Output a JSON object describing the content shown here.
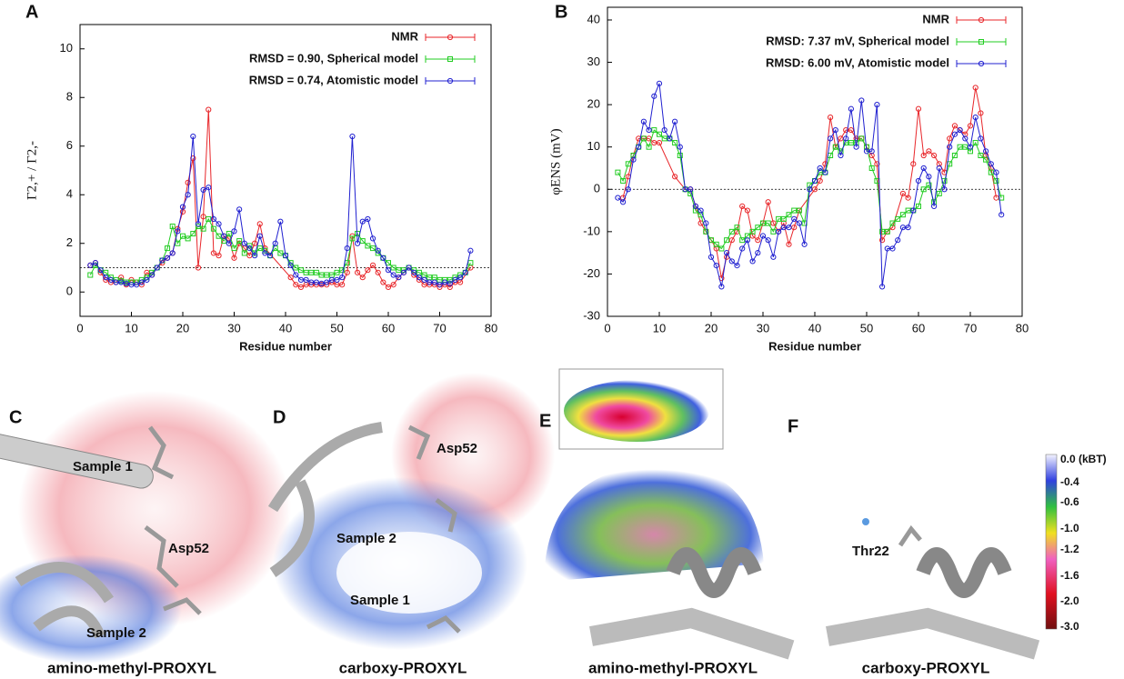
{
  "chart_data": [
    {
      "type": "line",
      "panel_label": "A",
      "xlabel": "Residue number",
      "ylabel": "Γ2,+ / Γ2,-",
      "x": [
        2,
        3,
        4,
        5,
        6,
        7,
        8,
        9,
        10,
        11,
        12,
        13,
        14,
        15,
        16,
        17,
        18,
        19,
        20,
        21,
        22,
        23,
        24,
        25,
        26,
        27,
        28,
        29,
        30,
        31,
        32,
        33,
        34,
        35,
        36,
        37,
        38,
        39,
        40,
        41,
        42,
        43,
        44,
        45,
        46,
        47,
        48,
        49,
        50,
        51,
        52,
        53,
        54,
        55,
        56,
        57,
        58,
        59,
        60,
        61,
        62,
        63,
        64,
        65,
        66,
        67,
        68,
        69,
        70,
        71,
        72,
        73,
        74,
        75,
        76
      ],
      "xlim": [
        0,
        80
      ],
      "xticks": [
        0,
        10,
        20,
        30,
        40,
        50,
        60,
        70,
        80
      ],
      "ylim": [
        -1,
        11
      ],
      "yticks": [
        0,
        2,
        4,
        6,
        8,
        10
      ],
      "reference_line": 1,
      "legend": "upper right",
      "series": [
        {
          "name": "NMR",
          "color": "#e8262a",
          "marker": "circle",
          "x": [
            2,
            3,
            4,
            5,
            6,
            7,
            8,
            9,
            10,
            11,
            12,
            13,
            14,
            15,
            16,
            17,
            18,
            19,
            20,
            21,
            22,
            23,
            24,
            25,
            26,
            27,
            28,
            29,
            30,
            31,
            32,
            33,
            34,
            35,
            36,
            41,
            42,
            43,
            44,
            45,
            46,
            47,
            48,
            49,
            50,
            51,
            52,
            53,
            54,
            55,
            56,
            57,
            58,
            59,
            60,
            61,
            62,
            63,
            64,
            65,
            66,
            67,
            68,
            69,
            70,
            71,
            72,
            73,
            74,
            76
          ],
          "values": [
            1.1,
            1.2,
            0.8,
            0.5,
            0.4,
            0.4,
            0.6,
            0.3,
            0.5,
            0.4,
            0.3,
            0.8,
            0.7,
            1.0,
            1.2,
            1.4,
            1.6,
            2.6,
            3.3,
            4.5,
            5.5,
            1.0,
            3.1,
            7.5,
            1.6,
            1.5,
            2.3,
            2.2,
            1.4,
            2.0,
            1.8,
            1.5,
            2.0,
            2.8,
            1.8,
            0.6,
            0.3,
            0.2,
            0.3,
            0.3,
            0.3,
            0.3,
            0.3,
            0.4,
            0.3,
            0.3,
            0.8,
            2.3,
            0.8,
            0.6,
            0.9,
            1.1,
            0.8,
            0.4,
            0.2,
            0.3,
            0.6,
            0.8,
            1.0,
            0.7,
            0.5,
            0.3,
            0.3,
            0.3,
            0.2,
            0.3,
            0.2,
            0.4,
            0.4,
            1.0
          ]
        },
        {
          "name": "RMSD = 0.90, Spherical model",
          "color": "#22cc22",
          "marker": "square",
          "values": [
            0.7,
            1.1,
            0.9,
            0.8,
            0.6,
            0.5,
            0.45,
            0.4,
            0.4,
            0.4,
            0.5,
            0.6,
            0.8,
            1.0,
            1.3,
            1.8,
            2.7,
            2.0,
            2.3,
            2.2,
            2.4,
            2.7,
            2.6,
            3.0,
            2.6,
            2.3,
            2.1,
            2.4,
            1.8,
            2.1,
            1.6,
            1.9,
            1.6,
            1.8,
            1.7,
            1.5,
            1.8,
            1.6,
            1.5,
            1.2,
            1.0,
            0.9,
            0.8,
            0.8,
            0.8,
            0.7,
            0.7,
            0.7,
            0.8,
            0.9,
            1.2,
            2.2,
            2.4,
            2.1,
            1.9,
            1.8,
            1.6,
            1.4,
            1.2,
            1.0,
            0.9,
            0.9,
            1.0,
            0.9,
            0.8,
            0.7,
            0.6,
            0.6,
            0.5,
            0.5,
            0.5,
            0.6,
            0.7,
            0.8,
            1.2
          ]
        },
        {
          "name": "RMSD = 0.74, Atomistic model",
          "color": "#2020d0",
          "marker": "circle",
          "values": [
            1.1,
            1.2,
            0.9,
            0.6,
            0.5,
            0.4,
            0.4,
            0.35,
            0.3,
            0.3,
            0.4,
            0.5,
            0.7,
            1.0,
            1.3,
            1.4,
            1.6,
            2.5,
            3.5,
            4.0,
            6.4,
            2.8,
            4.2,
            4.3,
            3.0,
            2.8,
            2.3,
            2.0,
            2.5,
            3.4,
            2.0,
            1.8,
            1.5,
            2.3,
            1.6,
            1.5,
            2.0,
            2.9,
            1.5,
            1.1,
            0.7,
            0.5,
            0.5,
            0.4,
            0.4,
            0.35,
            0.4,
            0.5,
            0.5,
            0.6,
            1.8,
            6.4,
            2.0,
            2.9,
            3.0,
            2.2,
            1.7,
            1.4,
            0.9,
            0.7,
            0.6,
            0.8,
            1.0,
            0.8,
            0.6,
            0.5,
            0.4,
            0.4,
            0.3,
            0.4,
            0.35,
            0.5,
            0.6,
            0.8,
            1.7
          ]
        }
      ]
    },
    {
      "type": "line",
      "panel_label": "B",
      "xlabel": "Residue number",
      "ylabel": "φENS (mV)",
      "x": [
        2,
        3,
        4,
        5,
        6,
        7,
        8,
        9,
        10,
        11,
        12,
        13,
        14,
        15,
        16,
        17,
        18,
        19,
        20,
        21,
        22,
        23,
        24,
        25,
        26,
        27,
        28,
        29,
        30,
        31,
        32,
        33,
        34,
        35,
        36,
        37,
        38,
        39,
        40,
        41,
        42,
        43,
        44,
        45,
        46,
        47,
        48,
        49,
        50,
        51,
        52,
        53,
        54,
        55,
        56,
        57,
        58,
        59,
        60,
        61,
        62,
        63,
        64,
        65,
        66,
        67,
        68,
        69,
        70,
        71,
        72,
        73,
        74,
        75,
        76
      ],
      "xlim": [
        0,
        80
      ],
      "xticks": [
        0,
        10,
        20,
        30,
        40,
        50,
        60,
        70,
        80
      ],
      "ylim": [
        -30,
        43
      ],
      "yticks": [
        -30,
        -20,
        -10,
        0,
        10,
        20,
        30,
        40
      ],
      "reference_line": 0,
      "legend": "upper right",
      "series": [
        {
          "name": "NMR",
          "color": "#e8262a",
          "marker": "circle",
          "x": [
            3,
            4,
            5,
            6,
            7,
            8,
            9,
            10,
            13,
            15,
            16,
            17,
            18,
            19,
            20,
            21,
            22,
            23,
            24,
            25,
            26,
            27,
            28,
            29,
            30,
            31,
            32,
            33,
            34,
            35,
            36,
            37,
            40,
            41,
            42,
            43,
            44,
            45,
            46,
            47,
            48,
            49,
            50,
            51,
            52,
            53,
            54,
            55,
            57,
            58,
            59,
            60,
            61,
            62,
            63,
            64,
            65,
            66,
            67,
            68,
            69,
            70,
            71,
            72,
            73,
            74,
            75
          ],
          "values": [
            -2,
            3,
            8,
            12,
            12,
            12,
            11,
            11,
            3,
            0,
            0,
            -4,
            -8,
            -10,
            -12,
            -14,
            -21,
            -16,
            -12,
            -10,
            -4,
            -5,
            -11,
            -12,
            -8,
            -3,
            -8,
            -10,
            -8,
            -13,
            -9,
            -5,
            0,
            2,
            6,
            17,
            10,
            12,
            14,
            14,
            12,
            12,
            10,
            8,
            6,
            -12,
            -10,
            -9,
            -1,
            -2,
            6,
            19,
            8,
            9,
            8,
            6,
            4,
            12,
            15,
            14,
            13,
            15,
            24,
            18,
            8,
            5,
            -2
          ]
        },
        {
          "name": "RMSD: 7.37 mV, Spherical model",
          "color": "#22cc22",
          "marker": "square",
          "values": [
            4,
            2,
            6,
            8,
            10,
            12,
            10,
            14,
            13,
            12,
            12,
            11,
            8,
            0,
            -1,
            -5,
            -6,
            -10,
            -12,
            -13,
            -14,
            -12,
            -10,
            -9,
            -12,
            -11,
            -10,
            -9,
            -8,
            -8,
            -10,
            -7,
            -7,
            -6,
            -5,
            -5,
            -8,
            1,
            2,
            4,
            4,
            8,
            10,
            9,
            11,
            11,
            11,
            12,
            10,
            5,
            2,
            -10,
            -10,
            -8,
            -7,
            -6,
            -5,
            -5,
            -4,
            0,
            1,
            -3,
            -1,
            2,
            6,
            8,
            10,
            10,
            9,
            11,
            8,
            7,
            4,
            2,
            -2
          ]
        },
        {
          "name": "RMSD: 6.00 mV, Atomistic model",
          "color": "#2020d0",
          "marker": "circle",
          "values": [
            -2,
            -3,
            0,
            7,
            10,
            16,
            14,
            22,
            25,
            14,
            12,
            16,
            10,
            0,
            0,
            -4,
            -5,
            -8,
            -16,
            -18,
            -23,
            -15,
            -17,
            -18,
            -14,
            -12,
            -17,
            -15,
            -11,
            -12,
            -16,
            -10,
            -9,
            -9,
            -7,
            -8,
            -13,
            0,
            2,
            5,
            4,
            12,
            14,
            8,
            12,
            19,
            10,
            21,
            9,
            9,
            20,
            -23,
            -14,
            -14,
            -12,
            -9,
            -9,
            -5,
            2,
            5,
            3,
            -4,
            5,
            0,
            10,
            13,
            14,
            12,
            10,
            17,
            12,
            9,
            6,
            4,
            -6
          ]
        }
      ]
    }
  ],
  "panels": {
    "labels": [
      "C",
      "D",
      "E",
      "F"
    ],
    "captions": [
      "amino-methyl-PROXYL",
      "carboxy-PROXYL",
      "amino-methyl-PROXYL",
      "carboxy-PROXYL"
    ],
    "annotations": [
      "Sample 1",
      "Asp52",
      "Sample 2",
      "Asp52",
      "Sample 2",
      "Sample 1",
      "Thr22"
    ],
    "colorbar": {
      "title": "0.0 (kBT)",
      "labels": [
        "-0.4",
        "-0.6",
        "-1.0",
        "-1.2",
        "-1.6",
        "-2.0",
        "-3.0"
      ]
    }
  }
}
